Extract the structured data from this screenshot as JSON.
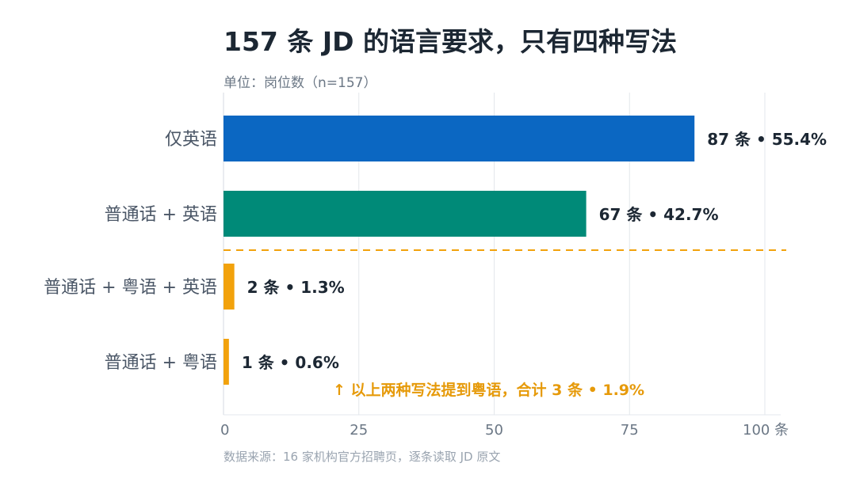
{
  "chart_data": {
    "type": "bar",
    "orientation": "horizontal",
    "title": "157 条 JD 的语言要求，只有四种写法",
    "subtitle": "单位：岗位数（n=157）",
    "source": "数据来源：16 家机构官方招聘页，逐条读取 JD 原文",
    "categories": [
      "仅英语",
      "普通话 + 英语",
      "普通话 + 粤语 + 英语",
      "普通话 + 粤语"
    ],
    "values": [
      87,
      67,
      2,
      1
    ],
    "percents": [
      "55.4%",
      "42.7%",
      "1.3%",
      "0.6%"
    ],
    "unit": "条",
    "value_labels": [
      "87 条 • 55.4%",
      "67 条 • 42.7%",
      "2 条 • 1.3%",
      "1 条 • 0.6%"
    ],
    "bar_colors": [
      "#0b67c2",
      "#008a78",
      "#f2a20c",
      "#f2a20c"
    ],
    "xlim": [
      0,
      100
    ],
    "x_ticks": [
      0,
      25,
      50,
      75,
      100
    ],
    "x_tick_labels": [
      "0",
      "25",
      "50",
      "75",
      "100 条"
    ],
    "grid": true,
    "divider": {
      "after_category_index": 1,
      "style": "dashed",
      "color": "#f2a20c"
    },
    "annotation": {
      "text": "↑ 以上两种写法提到粤语，合计 3 条 • 1.9%",
      "color": "#e69a0a"
    }
  }
}
